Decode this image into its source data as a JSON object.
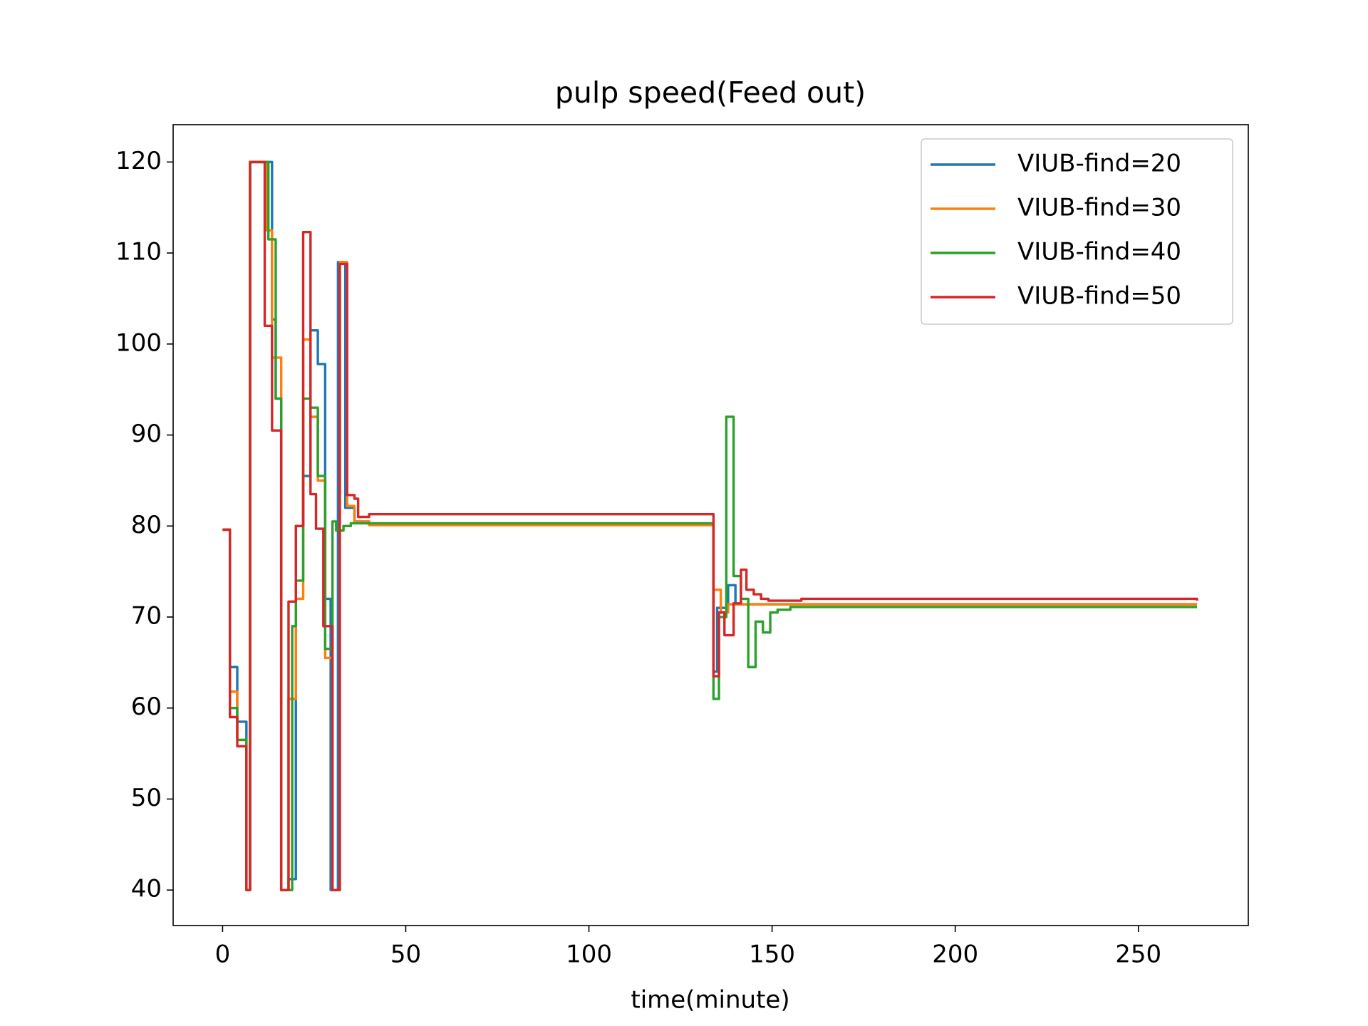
{
  "chart_data": {
    "type": "line",
    "step": "post",
    "title": "pulp speed(Feed out)",
    "x_label": "time(minute)",
    "xlim": [
      -13.5,
      280
    ],
    "xticks": [
      0,
      50,
      100,
      150,
      200,
      250
    ],
    "ylim": [
      36.1,
      124.1
    ],
    "yticks": [
      40,
      50,
      60,
      70,
      80,
      90,
      100,
      110,
      120
    ],
    "legend": "upper right",
    "series": [
      {
        "name": "VIUB-find=20",
        "color": "#1f77b4",
        "x": [
          0,
          2,
          4,
          6.5,
          7.5,
          13.5,
          14.5,
          16,
          18,
          20,
          22,
          24,
          26,
          28,
          29.5,
          31.5,
          33.5,
          36,
          40,
          134,
          135,
          138,
          140,
          266
        ],
        "values": [
          79.6,
          64.5,
          58.5,
          40,
          120,
          102.7,
          94,
          40,
          41.2,
          80,
          85.5,
          101.5,
          97.8,
          72,
          40,
          109,
          82,
          80.5,
          80.2,
          64,
          71,
          73.5,
          71.4,
          71.4
        ]
      },
      {
        "name": "VIUB-find=30",
        "color": "#ff7f0e",
        "x": [
          0,
          2,
          4,
          6.5,
          7.5,
          12,
          13.5,
          16,
          18,
          20,
          22,
          24,
          26,
          28,
          30,
          32,
          34,
          36,
          40,
          134,
          136,
          138,
          266
        ],
        "values": [
          79.6,
          61.8,
          56.5,
          40,
          120,
          112.5,
          98.5,
          40,
          61,
          72,
          100.5,
          92,
          85,
          65.5,
          40,
          109,
          82.2,
          80.5,
          80.1,
          73,
          70.5,
          71.4,
          71.4
        ]
      },
      {
        "name": "VIUB-find=40",
        "color": "#2ca02c",
        "x": [
          0,
          2,
          4,
          6.5,
          7.5,
          12.5,
          14.5,
          16,
          19,
          20,
          22,
          24,
          26,
          28,
          30,
          31,
          33,
          35,
          134,
          135.5,
          137.5,
          139.5,
          141.5,
          143.5,
          145.5,
          147.5,
          149.5,
          151.5,
          155,
          266
        ],
        "values": [
          79.6,
          60,
          56.5,
          40,
          120,
          111.5,
          94,
          40,
          69,
          74,
          94,
          93,
          85.5,
          66.5,
          80.5,
          79.5,
          80,
          80.3,
          61,
          70,
          92,
          74.5,
          72,
          64.5,
          69.5,
          68.3,
          70.5,
          70.8,
          71.1,
          71.1
        ]
      },
      {
        "name": "VIUB-find=50",
        "color": "#d62728",
        "x": [
          0,
          2,
          4,
          6.5,
          7.5,
          11.5,
          13.5,
          16,
          18,
          20,
          22,
          24,
          25.5,
          27.5,
          30,
          32,
          34,
          36,
          37,
          40,
          134,
          135.5,
          137,
          139.5,
          141.5,
          143,
          145,
          147,
          149,
          158,
          266
        ],
        "values": [
          79.6,
          59,
          55.8,
          40,
          120,
          102,
          90.5,
          40,
          71.7,
          80,
          112.3,
          83.5,
          79.7,
          69,
          40,
          108.8,
          83.4,
          83,
          81,
          81.3,
          63.5,
          70.5,
          68,
          71.5,
          75.2,
          73,
          72.5,
          72,
          71.8,
          72,
          71.8
        ]
      }
    ]
  }
}
